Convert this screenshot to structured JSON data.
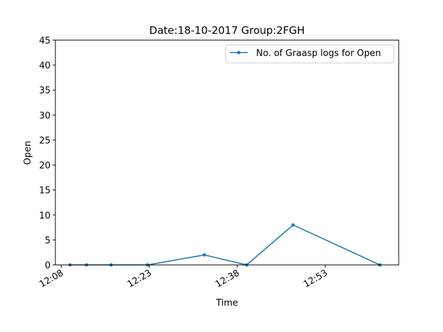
{
  "chart_data": {
    "type": "line",
    "title": "Date:18-10-2017  Group:2FGH",
    "xlabel": "Time",
    "ylabel": "Open",
    "x_unit": "minutes of day",
    "xlim": [
      727,
      785.5
    ],
    "ylim": [
      0,
      45
    ],
    "x_ticks": [
      {
        "value": 728,
        "label": "12:08"
      },
      {
        "value": 743,
        "label": "12:23"
      },
      {
        "value": 758,
        "label": "12:38"
      },
      {
        "value": 773,
        "label": "12:53"
      }
    ],
    "y_ticks": [
      0,
      5,
      10,
      15,
      20,
      25,
      30,
      35,
      40,
      45
    ],
    "legend_position": "top-right",
    "series": [
      {
        "name": "No. of Graasp logs for Open",
        "color": "#1f77b4",
        "x": [
          729.5,
          732.3,
          736.5,
          742.7,
          752.4,
          759.6,
          767.5,
          782.3
        ],
        "values": [
          0,
          0,
          0,
          0,
          2,
          0,
          8,
          0
        ]
      }
    ]
  }
}
